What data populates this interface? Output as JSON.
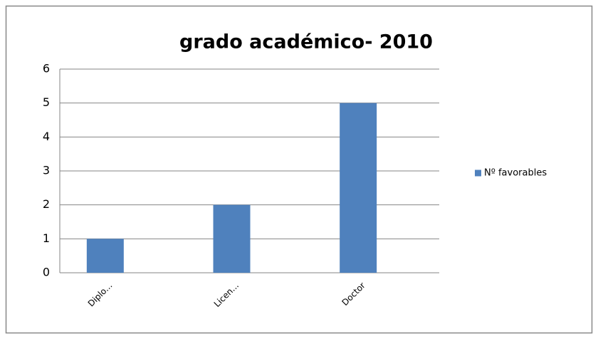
{
  "chart_data": {
    "type": "bar",
    "title": "grado académico- 2010",
    "categories": [
      "Diplo...",
      "Licen...",
      "Doctor"
    ],
    "series": [
      {
        "name": "Nº favorables",
        "color": "#4f81bd",
        "values": [
          1,
          2,
          5
        ]
      }
    ],
    "ylim": [
      0,
      6
    ],
    "yticks": [
      0,
      1,
      2,
      3,
      4,
      5,
      6
    ],
    "grid": true,
    "legend": "right"
  }
}
